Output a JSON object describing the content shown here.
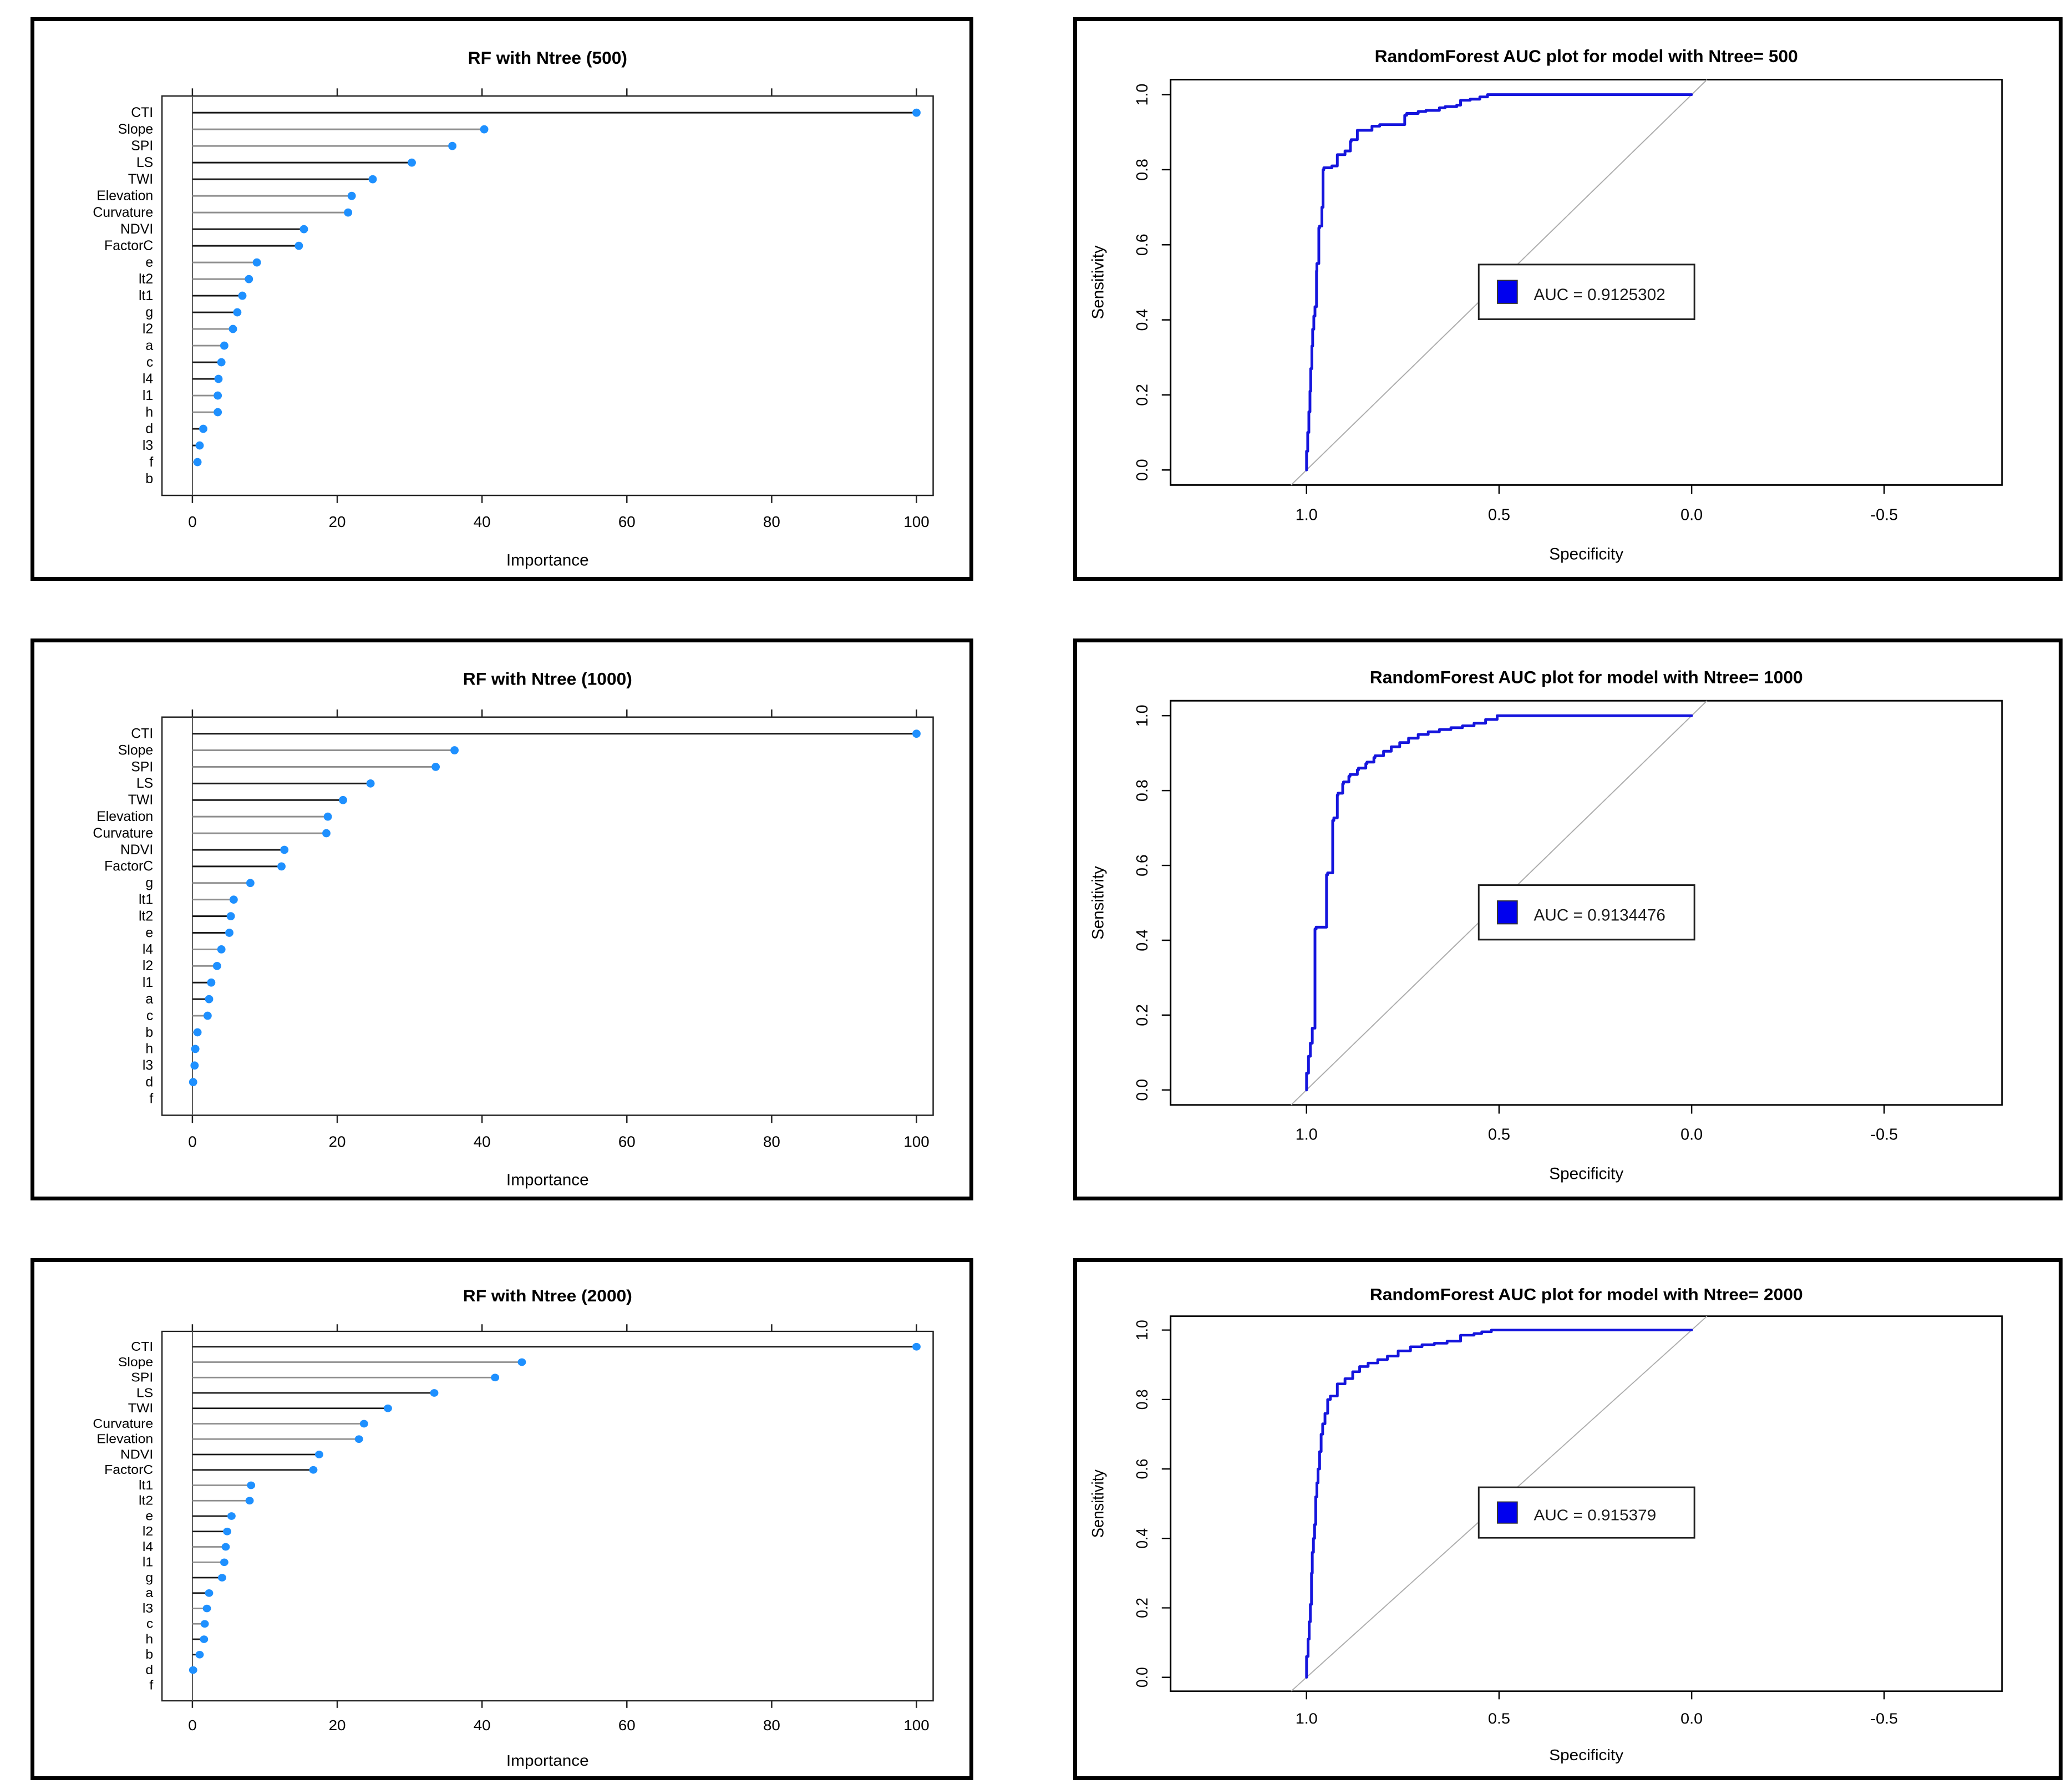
{
  "colors": {
    "dot": "#1E90FF",
    "stem_pattern": [
      "#1a1a1a",
      "#8f8f8f",
      "#8f8f8f",
      "#1a1a1a"
    ],
    "zero_line": "#555555",
    "plot_border": "#222222",
    "roc_line": "#1515DD",
    "legend_fill": "#0000EE",
    "diagonal": "#ADADAD",
    "text": "#000000",
    "legend_text": "#1a1a1a"
  },
  "chart_data": [
    {
      "id": "imp-500",
      "type": "lollipop",
      "title": "RF with Ntree (500)",
      "xlabel": "Importance",
      "xticks": [
        0,
        20,
        40,
        60,
        80,
        100
      ],
      "xlim": [
        -4.2,
        102.3
      ],
      "categories": [
        "CTI",
        "Slope",
        "SPI",
        "LS",
        "TWI",
        "Elevation",
        "Curvature",
        "NDVI",
        "FactorC",
        "e",
        "lt2",
        "lt1",
        "g",
        "l2",
        "a",
        "c",
        "l4",
        "l1",
        "h",
        "d",
        "l3",
        "f",
        "b"
      ],
      "values": [
        100,
        40.3,
        35.9,
        30.3,
        24.9,
        22.0,
        21.5,
        15.4,
        14.7,
        8.9,
        7.8,
        6.9,
        6.2,
        5.6,
        4.4,
        4.0,
        3.6,
        3.5,
        3.5,
        1.5,
        1.0,
        0.7,
        0
      ]
    },
    {
      "id": "roc-500",
      "type": "line",
      "title": "RandomForest AUC plot for model with Ntree= 500",
      "xlabel": "Specificity",
      "ylabel": "Sensitivity",
      "xtick_labels": [
        "1.0",
        "0.5",
        "0.0",
        "-0.5"
      ],
      "xticks": [
        1.0,
        0.5,
        0.0,
        -0.5
      ],
      "ytick_labels": [
        "0.0",
        "0.2",
        "0.4",
        "0.6",
        "0.8",
        "1.0"
      ],
      "yticks": [
        0.0,
        0.2,
        0.4,
        0.6,
        0.8,
        1.0
      ],
      "xlim": [
        1.353,
        -0.806
      ],
      "ylim": [
        -0.04,
        1.04
      ],
      "legend": "AUC = 0.9125302",
      "auc": 0.9125302,
      "series": [
        {
          "name": "ROC",
          "points": [
            [
              1.0,
              0.0
            ],
            [
              0.997,
              0.05
            ],
            [
              0.994,
              0.1
            ],
            [
              0.991,
              0.155
            ],
            [
              0.989,
              0.21
            ],
            [
              0.986,
              0.27
            ],
            [
              0.984,
              0.33
            ],
            [
              0.981,
              0.375
            ],
            [
              0.978,
              0.41
            ],
            [
              0.974,
              0.435
            ],
            [
              0.973,
              0.53
            ],
            [
              0.968,
              0.55
            ],
            [
              0.966,
              0.645
            ],
            [
              0.96,
              0.65
            ],
            [
              0.957,
              0.7
            ],
            [
              0.955,
              0.8
            ],
            [
              0.934,
              0.805
            ],
            [
              0.92,
              0.81
            ],
            [
              0.9,
              0.84
            ],
            [
              0.886,
              0.85
            ],
            [
              0.884,
              0.875
            ],
            [
              0.868,
              0.88
            ],
            [
              0.83,
              0.905
            ],
            [
              0.81,
              0.916
            ],
            [
              0.78,
              0.92
            ],
            [
              0.745,
              0.92
            ],
            [
              0.74,
              0.945
            ],
            [
              0.71,
              0.95
            ],
            [
              0.69,
              0.955
            ],
            [
              0.655,
              0.958
            ],
            [
              0.64,
              0.965
            ],
            [
              0.61,
              0.968
            ],
            [
              0.6,
              0.972
            ],
            [
              0.575,
              0.985
            ],
            [
              0.55,
              0.988
            ],
            [
              0.53,
              0.994
            ],
            [
              0.5,
              1.0
            ],
            [
              0.0,
              1.0
            ]
          ]
        }
      ]
    },
    {
      "id": "imp-1000",
      "type": "lollipop",
      "title": "RF with Ntree (1000)",
      "xlabel": "Importance",
      "xticks": [
        0,
        20,
        40,
        60,
        80,
        100
      ],
      "xlim": [
        -4.2,
        102.3
      ],
      "categories": [
        "CTI",
        "Slope",
        "SPI",
        "LS",
        "TWI",
        "Elevation",
        "Curvature",
        "NDVI",
        "FactorC",
        "g",
        "lt1",
        "lt2",
        "e",
        "l4",
        "l2",
        "l1",
        "a",
        "c",
        "b",
        "h",
        "l3",
        "d",
        "f"
      ],
      "values": [
        100,
        36.2,
        33.6,
        24.6,
        20.8,
        18.7,
        18.5,
        12.7,
        12.3,
        8.0,
        5.7,
        5.3,
        5.1,
        4.0,
        3.4,
        2.6,
        2.3,
        2.1,
        0.7,
        0.4,
        0.3,
        0.1,
        0
      ]
    },
    {
      "id": "roc-1000",
      "type": "line",
      "title": "RandomForest AUC plot for model with Ntree= 1000",
      "xlabel": "Specificity",
      "ylabel": "Sensitivity",
      "xtick_labels": [
        "1.0",
        "0.5",
        "0.0",
        "-0.5"
      ],
      "xticks": [
        1.0,
        0.5,
        0.0,
        -0.5
      ],
      "ytick_labels": [
        "0.0",
        "0.2",
        "0.4",
        "0.6",
        "0.8",
        "1.0"
      ],
      "yticks": [
        0.0,
        0.2,
        0.4,
        0.6,
        0.8,
        1.0
      ],
      "xlim": [
        1.353,
        -0.806
      ],
      "ylim": [
        -0.04,
        1.04
      ],
      "legend": "AUC = 0.9134476",
      "auc": 0.9134476,
      "series": [
        {
          "name": "ROC",
          "points": [
            [
              1.0,
              0.0
            ],
            [
              0.995,
              0.045
            ],
            [
              0.99,
              0.09
            ],
            [
              0.985,
              0.125
            ],
            [
              0.978,
              0.165
            ],
            [
              0.975,
              0.43
            ],
            [
              0.948,
              0.435
            ],
            [
              0.945,
              0.575
            ],
            [
              0.932,
              0.58
            ],
            [
              0.929,
              0.72
            ],
            [
              0.92,
              0.727
            ],
            [
              0.918,
              0.788
            ],
            [
              0.906,
              0.793
            ],
            [
              0.904,
              0.818
            ],
            [
              0.89,
              0.823
            ],
            [
              0.887,
              0.838
            ],
            [
              0.868,
              0.843
            ],
            [
              0.865,
              0.855
            ],
            [
              0.846,
              0.86
            ],
            [
              0.843,
              0.872
            ],
            [
              0.825,
              0.876
            ],
            [
              0.822,
              0.888
            ],
            [
              0.8,
              0.893
            ],
            [
              0.78,
              0.905
            ],
            [
              0.758,
              0.917
            ],
            [
              0.735,
              0.928
            ],
            [
              0.71,
              0.94
            ],
            [
              0.684,
              0.95
            ],
            [
              0.655,
              0.957
            ],
            [
              0.625,
              0.963
            ],
            [
              0.595,
              0.968
            ],
            [
              0.565,
              0.973
            ],
            [
              0.535,
              0.98
            ],
            [
              0.505,
              0.99
            ],
            [
              0.47,
              1.0
            ],
            [
              0.0,
              1.0
            ]
          ]
        }
      ]
    },
    {
      "id": "imp-2000",
      "type": "lollipop",
      "title": "RF with Ntree (2000)",
      "xlabel": "Importance",
      "xticks": [
        0,
        20,
        40,
        60,
        80,
        100
      ],
      "xlim": [
        -4.2,
        102.3
      ],
      "categories": [
        "CTI",
        "Slope",
        "SPI",
        "LS",
        "TWI",
        "Curvature",
        "Elevation",
        "NDVI",
        "FactorC",
        "lt1",
        "lt2",
        "e",
        "l2",
        "l4",
        "l1",
        "g",
        "a",
        "l3",
        "c",
        "h",
        "b",
        "d",
        "f"
      ],
      "values": [
        100,
        45.5,
        41.8,
        33.4,
        27.0,
        23.7,
        23.0,
        17.5,
        16.7,
        8.1,
        7.9,
        5.4,
        4.8,
        4.6,
        4.4,
        4.1,
        2.3,
        2.0,
        1.7,
        1.6,
        1.0,
        0.1,
        0
      ]
    },
    {
      "id": "roc-2000",
      "type": "line",
      "title": "RandomForest AUC plot for model with Ntree= 2000",
      "xlabel": "Specificity",
      "ylabel": "Sensitivity",
      "xtick_labels": [
        "1.0",
        "0.5",
        "0.0",
        "-0.5"
      ],
      "xticks": [
        1.0,
        0.5,
        0.0,
        -0.5
      ],
      "ytick_labels": [
        "0.0",
        "0.2",
        "0.4",
        "0.6",
        "0.8",
        "1.0"
      ],
      "yticks": [
        0.0,
        0.2,
        0.4,
        0.6,
        0.8,
        1.0
      ],
      "xlim": [
        1.353,
        -0.806
      ],
      "ylim": [
        -0.04,
        1.04
      ],
      "legend": "AUC = 0.915379",
      "auc": 0.915379,
      "series": [
        {
          "name": "ROC",
          "points": [
            [
              1.0,
              0.0
            ],
            [
              0.996,
              0.06
            ],
            [
              0.993,
              0.11
            ],
            [
              0.99,
              0.16
            ],
            [
              0.987,
              0.21
            ],
            [
              0.985,
              0.3
            ],
            [
              0.982,
              0.36
            ],
            [
              0.979,
              0.4
            ],
            [
              0.976,
              0.44
            ],
            [
              0.973,
              0.52
            ],
            [
              0.97,
              0.56
            ],
            [
              0.966,
              0.6
            ],
            [
              0.962,
              0.65
            ],
            [
              0.958,
              0.7
            ],
            [
              0.952,
              0.73
            ],
            [
              0.945,
              0.76
            ],
            [
              0.938,
              0.8
            ],
            [
              0.92,
              0.81
            ],
            [
              0.9,
              0.845
            ],
            [
              0.88,
              0.86
            ],
            [
              0.862,
              0.88
            ],
            [
              0.84,
              0.895
            ],
            [
              0.815,
              0.905
            ],
            [
              0.79,
              0.915
            ],
            [
              0.762,
              0.925
            ],
            [
              0.73,
              0.94
            ],
            [
              0.7,
              0.952
            ],
            [
              0.668,
              0.958
            ],
            [
              0.635,
              0.962
            ],
            [
              0.6,
              0.968
            ],
            [
              0.565,
              0.985
            ],
            [
              0.545,
              0.99
            ],
            [
              0.52,
              0.995
            ],
            [
              0.49,
              1.0
            ],
            [
              0.0,
              1.0
            ]
          ]
        }
      ]
    }
  ]
}
